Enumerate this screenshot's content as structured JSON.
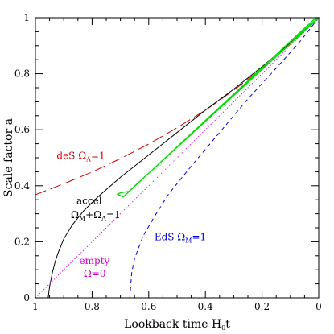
{
  "chart_data": {
    "type": "line",
    "xlabel": {
      "main": "Lookback time H",
      "sub": "0",
      "tail": "t"
    },
    "ylabel": "Scale factor a",
    "xlim": [
      1,
      0
    ],
    "ylim": [
      0,
      1
    ],
    "x_ticks": [
      "1",
      "0.8",
      "0.6",
      "0.4",
      "0.2",
      "0"
    ],
    "y_ticks": [
      "0",
      "0.2",
      "0.4",
      "0.6",
      "0.8",
      "1"
    ],
    "grid": false,
    "series": [
      {
        "color": "#d40000",
        "dash": "long-dash",
        "points": [
          [
            1.0,
            0.368
          ],
          [
            0.9,
            0.407
          ],
          [
            0.8,
            0.449
          ],
          [
            0.7,
            0.497
          ],
          [
            0.6,
            0.549
          ],
          [
            0.5,
            0.607
          ],
          [
            0.4,
            0.67
          ],
          [
            0.3,
            0.741
          ],
          [
            0.2,
            0.819
          ],
          [
            0.1,
            0.905
          ],
          [
            0.0,
            1.0
          ]
        ]
      },
      {
        "color": "#000000",
        "dash": "solid",
        "points": [
          [
            0.955,
            0.0
          ],
          [
            0.95,
            0.04
          ],
          [
            0.94,
            0.09
          ],
          [
            0.93,
            0.13
          ],
          [
            0.92,
            0.16
          ],
          [
            0.9,
            0.21
          ],
          [
            0.87,
            0.26
          ],
          [
            0.83,
            0.31
          ],
          [
            0.78,
            0.36
          ],
          [
            0.7,
            0.43
          ],
          [
            0.6,
            0.51
          ],
          [
            0.5,
            0.59
          ],
          [
            0.4,
            0.67
          ],
          [
            0.3,
            0.745
          ],
          [
            0.2,
            0.825
          ],
          [
            0.1,
            0.91
          ],
          [
            0.0,
            1.0
          ]
        ]
      },
      {
        "color": "#d000d0",
        "dash": "dotted",
        "points": [
          [
            1.0,
            0.0
          ],
          [
            0.0,
            1.0
          ]
        ]
      },
      {
        "color": "#0000d0",
        "dash": "short-dash",
        "points": [
          [
            0.667,
            0.0
          ],
          [
            0.66,
            0.09
          ],
          [
            0.65,
            0.14
          ],
          [
            0.62,
            0.22
          ],
          [
            0.58,
            0.29
          ],
          [
            0.53,
            0.37
          ],
          [
            0.45,
            0.47
          ],
          [
            0.35,
            0.59
          ],
          [
            0.25,
            0.71
          ],
          [
            0.15,
            0.82
          ],
          [
            0.07,
            0.91
          ],
          [
            0.0,
            1.0
          ]
        ]
      }
    ],
    "highlight": {
      "color": "#00dd00",
      "polygon": [
        [
          0.71,
          0.37
        ],
        [
          0.7,
          0.375
        ],
        [
          0.67,
          0.38
        ],
        [
          0.0,
          1.0
        ],
        [
          0.01,
          1.0
        ],
        [
          0.69,
          0.36
        ]
      ],
      "line": [
        [
          0.08,
          0.93
        ],
        [
          0.0,
          1.0
        ]
      ]
    },
    "annotations": [
      {
        "id": "des",
        "color": "#d40000",
        "main": "deS Ω",
        "sub": "Λ",
        "tail": "=1",
        "x": 0.925,
        "y": 0.495
      },
      {
        "id": "accel-1",
        "color": "#000000",
        "main": "accel",
        "sub": "",
        "tail": "",
        "x": 0.855,
        "y": 0.335
      },
      {
        "id": "accel-2",
        "color": "#000000",
        "main": "Ω",
        "sub": "M",
        "tail": "+Ω",
        "sub2": "Λ",
        "tail2": "=1",
        "x": 0.875,
        "y": 0.285
      },
      {
        "id": "eds",
        "color": "#0000d0",
        "main": "EdS Ω",
        "sub": "M",
        "tail": "=1",
        "x": 0.58,
        "y": 0.205
      },
      {
        "id": "empty-1",
        "color": "#d000d0",
        "main": "empty",
        "sub": "",
        "tail": "",
        "x": 0.845,
        "y": 0.12
      },
      {
        "id": "empty-2",
        "color": "#d000d0",
        "main": "Ω=0",
        "sub": "",
        "tail": "",
        "x": 0.83,
        "y": 0.075
      }
    ]
  }
}
